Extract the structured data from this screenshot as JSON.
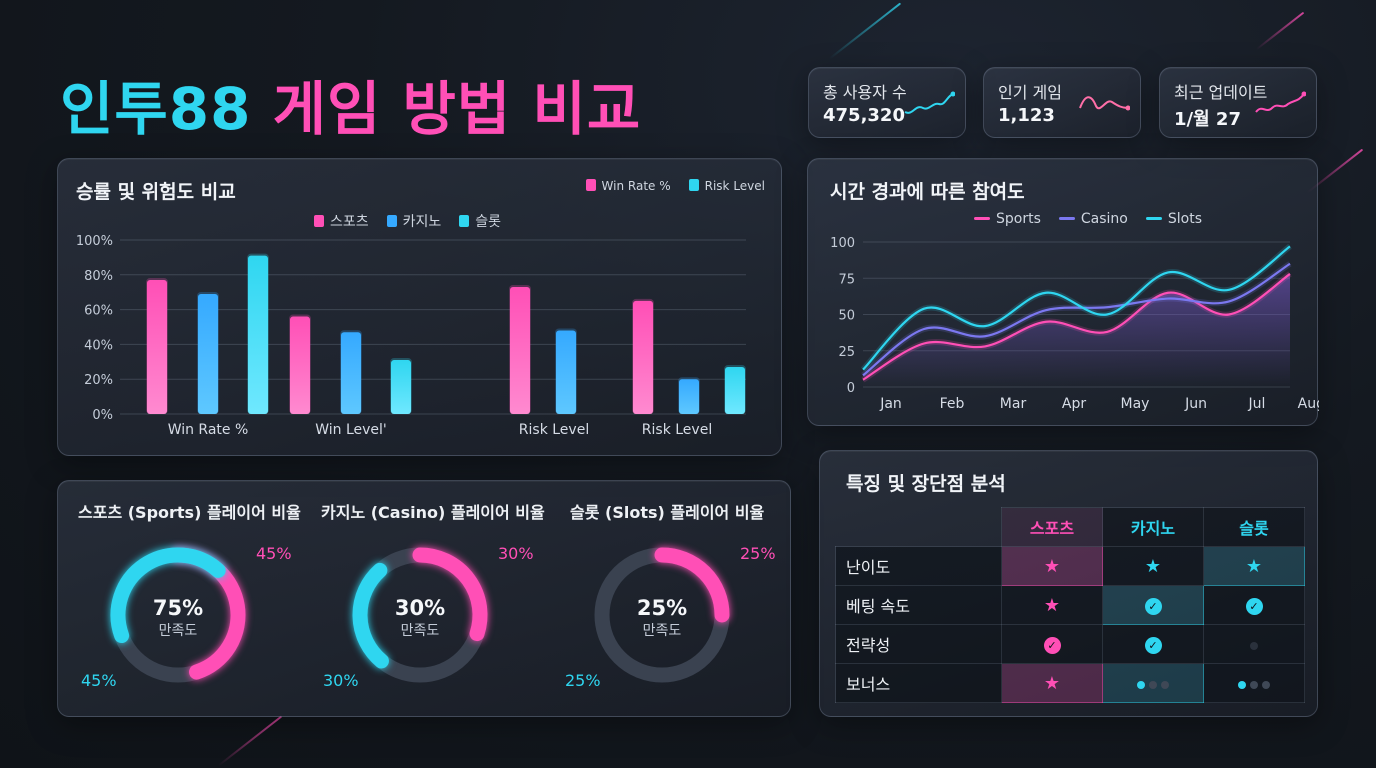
{
  "title": {
    "part1": "인투88",
    "part2": "게임 방법 비교"
  },
  "stats": [
    {
      "label": "총 사용자 수",
      "value": "475,320",
      "color": "#2fd6f0"
    },
    {
      "label": "인기 게임",
      "value": "1,123",
      "color": "#ff6fa8"
    },
    {
      "label": "최근 업데이트",
      "value": "1/월 27",
      "color": "#ff4fb6"
    }
  ],
  "bar_panel": {
    "title": "승률 및 위험도 비교",
    "legend_top": [
      "Win Rate %",
      "Risk Level"
    ],
    "legend": [
      "스포츠",
      "카지노",
      "슬롯"
    ]
  },
  "line_panel": {
    "title": "시간 경과에 따른 참여도",
    "legend": [
      "Sports",
      "Casino",
      "Slots"
    ]
  },
  "donut_panel": {
    "items": [
      {
        "title": "스포츠 (Sports) 플레이어 비율",
        "center": "75%",
        "sub": "만족도",
        "top_label": "45%",
        "bottom_label": "45%"
      },
      {
        "title": "카지노 (Casino) 플레이어 비율",
        "center": "30%",
        "sub": "만족도",
        "top_label": "30%",
        "bottom_label": "30%"
      },
      {
        "title": "슬롯 (Slots) 플레이어 비율",
        "center": "25%",
        "sub": "만족도",
        "top_label": "25%",
        "bottom_label": "25%"
      }
    ]
  },
  "table_panel": {
    "title": "특징 및 장단점 분석",
    "columns": [
      "스포츠",
      "카지노",
      "슬롯"
    ],
    "rows": [
      {
        "label": "난이도",
        "cells": [
          "star",
          "star",
          "star"
        ]
      },
      {
        "label": "베팅 속도",
        "cells": [
          "star",
          "check",
          "check"
        ]
      },
      {
        "label": "전략성",
        "cells": [
          "check",
          "check",
          "dim"
        ]
      },
      {
        "label": "보너스",
        "cells": [
          "star",
          "dots3",
          "dots1"
        ]
      }
    ]
  },
  "colors": {
    "pink": "#ff4fb6",
    "cyan": "#2fd6f0",
    "blue": "#35a9ff",
    "purple": "#7b78f0"
  },
  "chart_data": [
    {
      "type": "bar",
      "categories": [
        "Win Rate %",
        "Win Level'",
        "Risk Level",
        "Risk Level"
      ],
      "series": [
        {
          "name": "스포츠",
          "values": [
            77,
            56,
            73,
            65
          ]
        },
        {
          "name": "카지노",
          "values": [
            69,
            47,
            48,
            20
          ]
        },
        {
          "name": "슬롯",
          "values": [
            91,
            31,
            null,
            27
          ]
        }
      ],
      "yticks": [
        "0%",
        "20%",
        "40%",
        "60%",
        "80%",
        "100%"
      ],
      "ylim": [
        0,
        100
      ],
      "grid": true,
      "legend_position": "top"
    },
    {
      "type": "line",
      "x": [
        "Jan",
        "Feb",
        "Mar",
        "Apr",
        "May",
        "Jun",
        "Jul",
        "Aug..."
      ],
      "series": [
        {
          "name": "Sports",
          "values": [
            5,
            30,
            28,
            45,
            38,
            65,
            50,
            78
          ]
        },
        {
          "name": "Casino",
          "values": [
            8,
            40,
            35,
            53,
            55,
            61,
            59,
            85
          ]
        },
        {
          "name": "Slots",
          "values": [
            12,
            54,
            42,
            65,
            50,
            79,
            67,
            97
          ]
        }
      ],
      "yticks": [
        "0",
        "25",
        "50",
        "75",
        "100"
      ],
      "ylim": [
        0,
        100
      ],
      "grid": true,
      "legend_position": "top"
    },
    {
      "type": "pie",
      "name": "스포츠 (Sports) 플레이어 비율",
      "slices": [
        {
          "label": "45%",
          "value": 45
        },
        {
          "label": "45%",
          "value": 45
        }
      ]
    },
    {
      "type": "pie",
      "name": "카지노 (Casino) 플레이어 비율",
      "slices": [
        {
          "label": "30%",
          "value": 30
        },
        {
          "label": "30%",
          "value": 30
        }
      ]
    },
    {
      "type": "pie",
      "name": "슬롯 (Slots) 플레이어 비율",
      "slices": [
        {
          "label": "25%",
          "value": 25
        }
      ]
    }
  ]
}
